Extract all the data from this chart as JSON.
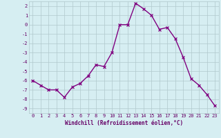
{
  "x": [
    0,
    1,
    2,
    3,
    4,
    5,
    6,
    7,
    8,
    9,
    10,
    11,
    12,
    13,
    14,
    15,
    16,
    17,
    18,
    19,
    20,
    21,
    22,
    23
  ],
  "y": [
    -6.0,
    -6.5,
    -7.0,
    -7.0,
    -7.8,
    -6.7,
    -6.3,
    -5.5,
    -4.3,
    -4.5,
    -3.0,
    0.0,
    0.0,
    2.3,
    1.7,
    1.0,
    -0.5,
    -0.3,
    -1.5,
    -3.5,
    -5.8,
    -6.5,
    -7.5,
    -8.7
  ],
  "line_color": "#800080",
  "marker": "x",
  "marker_size": 3,
  "bg_color": "#d6eef2",
  "grid_color": "#b0c8cc",
  "xlabel": "Windchill (Refroidissement éolien,°C)",
  "ylim": [
    -9.5,
    2.5
  ],
  "xlim": [
    -0.5,
    23.5
  ],
  "yticks": [
    2,
    1,
    0,
    -1,
    -2,
    -3,
    -4,
    -5,
    -6,
    -7,
    -8,
    -9
  ],
  "xticks": [
    0,
    1,
    2,
    3,
    4,
    5,
    6,
    7,
    8,
    9,
    10,
    11,
    12,
    13,
    14,
    15,
    16,
    17,
    18,
    19,
    20,
    21,
    22,
    23
  ],
  "tick_color": "#660066",
  "label_color": "#660066",
  "font_family": "monospace",
  "tick_fontsize": 5.0,
  "xlabel_fontsize": 5.5
}
